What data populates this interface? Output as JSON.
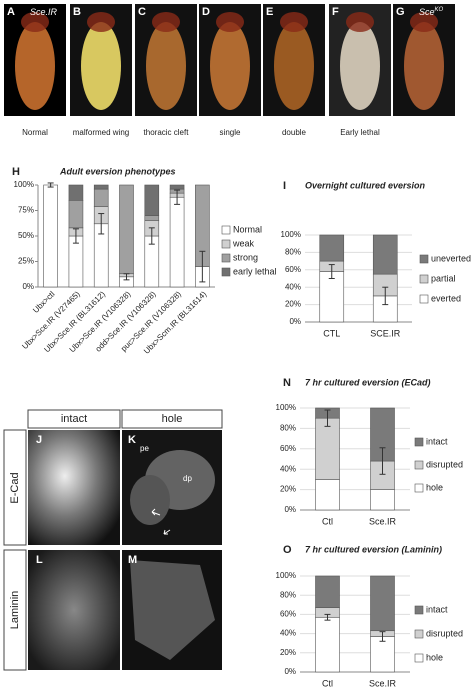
{
  "photo_panels": [
    {
      "letter": "A",
      "tag": "Sce.IR",
      "caption": "Normal"
    },
    {
      "letter": "B",
      "caption": "malformed wing"
    },
    {
      "letter": "C",
      "caption": "thoracic cleft"
    },
    {
      "letter": "D",
      "caption": "single"
    },
    {
      "letter": "E",
      "caption": "double"
    },
    {
      "letter": "F",
      "caption": "Early lethal"
    },
    {
      "letter": "G",
      "tag": "Sce",
      "tag_sup": "KO"
    }
  ],
  "chart_data": [
    {
      "panel": "H",
      "type": "bar",
      "stacked": true,
      "title": "Adult eversion phenotypes",
      "categories": [
        "Ubx>ctl",
        "Ubx>Sce.IR (V27465)",
        "Ubx>Sce.IR (BL31612)",
        "Ubx>Sce.IR (V106328)",
        "odd>Sce.IR (V106328)",
        "puc>Sce.IR (V106328)",
        "Ubx>Scm.IR (BL31614)"
      ],
      "series": [
        {
          "name": "Normal",
          "color": "#ffffff",
          "values": [
            100,
            50,
            62,
            10,
            50,
            88,
            20
          ],
          "errors": [
            2,
            7,
            10,
            3,
            8,
            7,
            15
          ]
        },
        {
          "name": "weak",
          "color": "#d0d0d0",
          "values": [
            0,
            8,
            17,
            3,
            15,
            4,
            0
          ]
        },
        {
          "name": "strong",
          "color": "#a0a0a0",
          "values": [
            0,
            27,
            17,
            87,
            5,
            4,
            80
          ]
        },
        {
          "name": "early lethal",
          "color": "#707070",
          "values": [
            0,
            15,
            4,
            0,
            30,
            4,
            0
          ]
        }
      ],
      "ylim": [
        0,
        100
      ],
      "yticks": [
        {
          "value": 0,
          "label": "0%"
        },
        {
          "value": 25,
          "label": "25%"
        },
        {
          "value": 50,
          "label": "50%"
        },
        {
          "value": 75,
          "label": "75%"
        },
        {
          "value": 100,
          "label": "100%"
        }
      ],
      "grid": false,
      "legend": "right",
      "legend_order": "forward",
      "rotate_labels": true
    },
    {
      "panel": "I",
      "type": "bar",
      "stacked": true,
      "title": "Overnight cultured eversion",
      "categories": [
        "CTL",
        "SCE.IR"
      ],
      "series": [
        {
          "name": "everted",
          "color": "#ffffff",
          "values": [
            58,
            30
          ],
          "errors": [
            8,
            10
          ]
        },
        {
          "name": "partial",
          "color": "#d0d0d0",
          "values": [
            12,
            25
          ]
        },
        {
          "name": "uneverted",
          "color": "#7a7a7a",
          "values": [
            30,
            45
          ]
        }
      ],
      "ylim": [
        0,
        100
      ],
      "yticks": [
        {
          "value": 0,
          "label": "0%"
        },
        {
          "value": 20,
          "label": "20%"
        },
        {
          "value": 40,
          "label": "40%"
        },
        {
          "value": 60,
          "label": "60%"
        },
        {
          "value": 80,
          "label": "80%"
        },
        {
          "value": 100,
          "label": "100%"
        }
      ],
      "grid": true,
      "legend": "right",
      "legend_order": "reverse",
      "rotate_labels": false
    },
    {
      "panel": "N",
      "type": "bar",
      "stacked": true,
      "title": "7 hr cultured eversion (ECad)",
      "categories": [
        "Ctl",
        "Sce.IR"
      ],
      "series": [
        {
          "name": "hole",
          "color": "#ffffff",
          "values": [
            30,
            20
          ]
        },
        {
          "name": "disrupted",
          "color": "#d0d0d0",
          "values": [
            60,
            28
          ],
          "errors": [
            8,
            13
          ]
        },
        {
          "name": "intact",
          "color": "#7a7a7a",
          "values": [
            10,
            52
          ]
        }
      ],
      "ylim": [
        0,
        100
      ],
      "yticks": [
        {
          "value": 0,
          "label": "0%"
        },
        {
          "value": 20,
          "label": "20%"
        },
        {
          "value": 40,
          "label": "40%"
        },
        {
          "value": 60,
          "label": "60%"
        },
        {
          "value": 80,
          "label": "80%"
        },
        {
          "value": 100,
          "label": "100%"
        }
      ],
      "grid": true,
      "legend": "right",
      "legend_order": "reverse",
      "rotate_labels": false
    },
    {
      "panel": "O",
      "type": "bar",
      "stacked": true,
      "title": "7 hr cultured eversion (Laminin)",
      "categories": [
        "Ctl",
        "Sce.IR"
      ],
      "series": [
        {
          "name": "hole",
          "color": "#ffffff",
          "values": [
            57,
            37
          ],
          "errors": [
            3,
            5
          ]
        },
        {
          "name": "disrupted",
          "color": "#d0d0d0",
          "values": [
            10,
            6
          ]
        },
        {
          "name": "intact",
          "color": "#7a7a7a",
          "values": [
            33,
            57
          ]
        }
      ],
      "ylim": [
        0,
        100
      ],
      "yticks": [
        {
          "value": 0,
          "label": "0%"
        },
        {
          "value": 20,
          "label": "20%"
        },
        {
          "value": 40,
          "label": "40%"
        },
        {
          "value": 60,
          "label": "60%"
        },
        {
          "value": 80,
          "label": "80%"
        },
        {
          "value": 100,
          "label": "100%"
        }
      ],
      "grid": true,
      "legend": "right",
      "legend_order": "reverse",
      "rotate_labels": false
    }
  ],
  "microscopy": {
    "columns": [
      "intact",
      "hole"
    ],
    "rows": [
      "E-Cad",
      "Laminin"
    ],
    "panels": [
      {
        "letter": "J"
      },
      {
        "letter": "K"
      },
      {
        "letter": "L"
      },
      {
        "letter": "M"
      }
    ],
    "annotations": [
      "pe",
      "dp"
    ]
  }
}
